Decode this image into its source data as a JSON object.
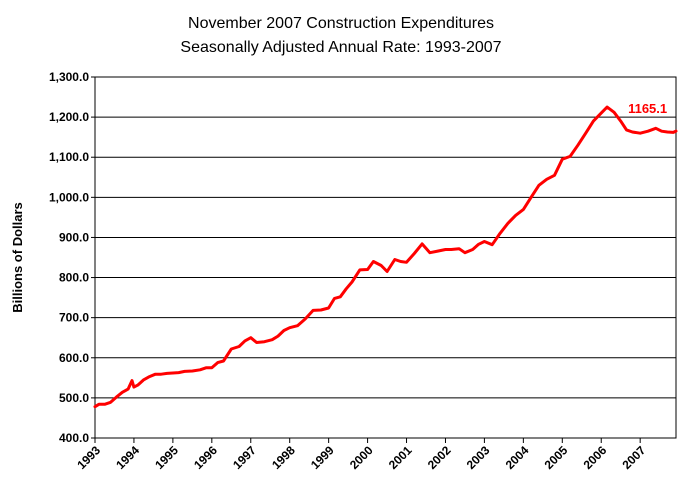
{
  "chart_data": {
    "type": "line",
    "title": "November 2007 Construction Expenditures",
    "subtitle": "Seasonally Adjusted Annual Rate: 1993-2007",
    "xlabel": "",
    "ylabel": "Billions of Dollars",
    "ylim": [
      400,
      1300
    ],
    "xlim": [
      1993.0,
      2007.92
    ],
    "y_ticks": [
      "400.0",
      "500.0",
      "600.0",
      "700.0",
      "800.0",
      "900.0",
      "1,000.0",
      "1,100.0",
      "1,200.0",
      "1,300.0"
    ],
    "x_ticks": [
      "1993",
      "1994",
      "1995",
      "1996",
      "1997",
      "1998",
      "1999",
      "2000",
      "2001",
      "2002",
      "2003",
      "2004",
      "2005",
      "2006",
      "2007"
    ],
    "grid": "horizontal",
    "line_color": "#ff0000",
    "annotation": {
      "text": "1165.1",
      "x": 2006.33,
      "y": 1225
    },
    "series": [
      {
        "x": [
          1993.0,
          1993.1,
          1993.25,
          1993.4,
          1993.55,
          1993.7,
          1993.85,
          1993.95,
          1994.0,
          1994.1,
          1994.25,
          1994.4,
          1994.55,
          1994.7,
          1994.85,
          1995.0,
          1995.15,
          1995.3,
          1995.5,
          1995.7,
          1995.85,
          1996.0,
          1996.15,
          1996.3,
          1996.5,
          1996.7,
          1996.85,
          1997.0,
          1997.15,
          1997.35,
          1997.55,
          1997.7,
          1997.85,
          1998.0,
          1998.2,
          1998.4,
          1998.6,
          1998.8,
          1999.0,
          1999.15,
          1999.3,
          1999.45,
          1999.6,
          1999.8,
          2000.0,
          2000.15,
          2000.35,
          2000.5,
          2000.7,
          2000.85,
          2001.0,
          2001.2,
          2001.4,
          2001.6,
          2001.8,
          2002.0,
          2002.15,
          2002.35,
          2002.5,
          2002.7,
          2002.85,
          2003.0,
          2003.2,
          2003.4,
          2003.6,
          2003.8,
          2004.0,
          2004.2,
          2004.4,
          2004.6,
          2004.8,
          2005.0,
          2005.2,
          2005.4,
          2005.6,
          2005.8,
          2006.0,
          2006.15,
          2006.33,
          2006.5,
          2006.65,
          2006.8,
          2007.0,
          2007.2,
          2007.4,
          2007.55,
          2007.7,
          2007.85,
          2007.92
        ],
        "y": [
          478,
          484,
          484,
          489,
          502,
          514,
          522,
          543,
          527,
          532,
          545,
          553,
          559,
          559,
          561,
          562,
          563,
          566,
          567,
          570,
          575,
          575,
          588,
          592,
          622,
          628,
          642,
          650,
          638,
          640,
          645,
          654,
          668,
          675,
          680,
          697,
          718,
          719,
          724,
          748,
          752,
          772,
          789,
          819,
          820,
          840,
          830,
          815,
          845,
          840,
          838,
          860,
          884,
          862,
          866,
          870,
          870,
          872,
          862,
          870,
          883,
          890,
          882,
          910,
          935,
          955,
          970,
          1000,
          1030,
          1045,
          1055,
          1095,
          1102,
          1130,
          1160,
          1190,
          1210,
          1225,
          1212,
          1190,
          1168,
          1163,
          1160,
          1165,
          1172,
          1165,
          1163,
          1162,
          1165.1
        ]
      }
    ]
  }
}
